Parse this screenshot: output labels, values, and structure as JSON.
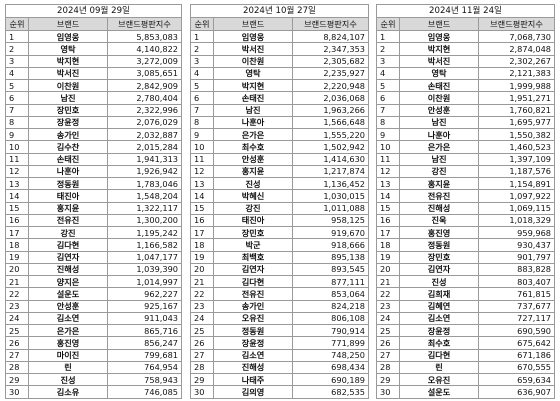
{
  "header_labels": {
    "rank": "순위",
    "brand": "브랜드",
    "index": "브랜드평판지수"
  },
  "panels": [
    {
      "date": "2024년 09월 29일",
      "rows": [
        [
          "1",
          "임영웅",
          "5,853,083"
        ],
        [
          "2",
          "영탁",
          "4,140,822"
        ],
        [
          "3",
          "박지현",
          "3,272,009"
        ],
        [
          "4",
          "박서진",
          "3,085,651"
        ],
        [
          "5",
          "이찬원",
          "2,842,909"
        ],
        [
          "6",
          "남진",
          "2,780,404"
        ],
        [
          "7",
          "장민호",
          "2,322,996"
        ],
        [
          "8",
          "장윤정",
          "2,076,029"
        ],
        [
          "9",
          "송가인",
          "2,032,887"
        ],
        [
          "10",
          "김수찬",
          "2,015,284"
        ],
        [
          "11",
          "손태진",
          "1,941,313"
        ],
        [
          "12",
          "나훈아",
          "1,926,942"
        ],
        [
          "13",
          "정동원",
          "1,783,046"
        ],
        [
          "14",
          "태진아",
          "1,548,204"
        ],
        [
          "15",
          "홍지윤",
          "1,322,117"
        ],
        [
          "16",
          "전유진",
          "1,300,200"
        ],
        [
          "17",
          "강진",
          "1,195,242"
        ],
        [
          "18",
          "김다현",
          "1,166,582"
        ],
        [
          "19",
          "김연자",
          "1,047,177"
        ],
        [
          "20",
          "진해성",
          "1,039,390"
        ],
        [
          "21",
          "양지은",
          "1,014,997"
        ],
        [
          "22",
          "설운도",
          "962,227"
        ],
        [
          "23",
          "안성훈",
          "925,167"
        ],
        [
          "24",
          "김소연",
          "911,043"
        ],
        [
          "25",
          "은가은",
          "865,716"
        ],
        [
          "26",
          "홍진영",
          "856,247"
        ],
        [
          "27",
          "마이진",
          "799,681"
        ],
        [
          "28",
          "린",
          "764,954"
        ],
        [
          "29",
          "진성",
          "758,943"
        ],
        [
          "30",
          "김소유",
          "746,085"
        ]
      ]
    },
    {
      "date": "2024년 10월 27일",
      "rows": [
        [
          "1",
          "임영웅",
          "8,824,107"
        ],
        [
          "2",
          "박서진",
          "2,347,353"
        ],
        [
          "3",
          "이찬원",
          "2,305,682"
        ],
        [
          "4",
          "영탁",
          "2,235,927"
        ],
        [
          "5",
          "박지현",
          "2,220,948"
        ],
        [
          "6",
          "손태진",
          "2,036,068"
        ],
        [
          "7",
          "남진",
          "1,963,266"
        ],
        [
          "8",
          "나훈아",
          "1,566,648"
        ],
        [
          "9",
          "은가은",
          "1,555,220"
        ],
        [
          "10",
          "최수호",
          "1,502,942"
        ],
        [
          "11",
          "안성훈",
          "1,414,630"
        ],
        [
          "12",
          "홍지윤",
          "1,217,874"
        ],
        [
          "13",
          "진성",
          "1,136,452"
        ],
        [
          "14",
          "박혜신",
          "1,030,015"
        ],
        [
          "15",
          "강진",
          "1,011,088"
        ],
        [
          "16",
          "태진아",
          "958,125"
        ],
        [
          "17",
          "장민호",
          "919,670"
        ],
        [
          "18",
          "박군",
          "918,666"
        ],
        [
          "19",
          "최백호",
          "895,138"
        ],
        [
          "20",
          "김연자",
          "893,545"
        ],
        [
          "21",
          "김다현",
          "877,111"
        ],
        [
          "22",
          "전유진",
          "853,064"
        ],
        [
          "23",
          "송가인",
          "824,218"
        ],
        [
          "24",
          "오유진",
          "806,108"
        ],
        [
          "25",
          "정동원",
          "790,914"
        ],
        [
          "26",
          "장윤정",
          "771,899"
        ],
        [
          "27",
          "김소연",
          "748,250"
        ],
        [
          "28",
          "진해성",
          "698,434"
        ],
        [
          "29",
          "나태주",
          "690,189"
        ],
        [
          "30",
          "김의영",
          "682,535"
        ]
      ]
    },
    {
      "date": "2024년 11월 24일",
      "rows": [
        [
          "1",
          "임영웅",
          "7,068,730"
        ],
        [
          "2",
          "박지현",
          "2,874,048"
        ],
        [
          "3",
          "박서진",
          "2,302,267"
        ],
        [
          "4",
          "영탁",
          "2,121,383"
        ],
        [
          "5",
          "손태진",
          "1,999,988"
        ],
        [
          "6",
          "이찬원",
          "1,951,271"
        ],
        [
          "7",
          "안성훈",
          "1,760,821"
        ],
        [
          "8",
          "남진",
          "1,695,977"
        ],
        [
          "9",
          "나훈아",
          "1,550,382"
        ],
        [
          "10",
          "은가은",
          "1,460,523"
        ],
        [
          "11",
          "남진",
          "1,397,109"
        ],
        [
          "12",
          "강진",
          "1,187,576"
        ],
        [
          "13",
          "홍지윤",
          "1,154,891"
        ],
        [
          "14",
          "전유진",
          "1,097,922"
        ],
        [
          "15",
          "진해성",
          "1,069,115"
        ],
        [
          "16",
          "진욱",
          "1,018,329"
        ],
        [
          "17",
          "홍진영",
          "959,968"
        ],
        [
          "18",
          "정동원",
          "930,437"
        ],
        [
          "19",
          "장민호",
          "901,797"
        ],
        [
          "20",
          "김연자",
          "883,828"
        ],
        [
          "21",
          "진성",
          "803,407"
        ],
        [
          "22",
          "김희재",
          "761,815"
        ],
        [
          "23",
          "김혜연",
          "737,677"
        ],
        [
          "24",
          "김소연",
          "727,117"
        ],
        [
          "25",
          "장윤정",
          "690,590"
        ],
        [
          "26",
          "최수호",
          "675,642"
        ],
        [
          "27",
          "김다현",
          "671,186"
        ],
        [
          "28",
          "린",
          "670,555"
        ],
        [
          "29",
          "오유진",
          "659,634"
        ],
        [
          "30",
          "설운도",
          "636,907"
        ]
      ]
    }
  ]
}
